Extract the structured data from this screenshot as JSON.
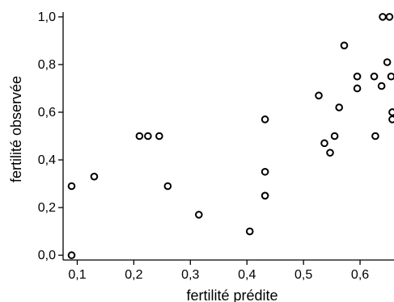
{
  "chart_data": {
    "type": "scatter",
    "title": "",
    "xlabel": "fertilité prédite",
    "ylabel": "fertilité observée",
    "xlim": [
      0.075,
      0.66
    ],
    "ylim": [
      -0.02,
      1.02
    ],
    "xticks": [
      {
        "value": 0.1,
        "label": "0,1"
      },
      {
        "value": 0.2,
        "label": "0,2"
      },
      {
        "value": 0.3,
        "label": "0,3"
      },
      {
        "value": 0.4,
        "label": "0,4"
      },
      {
        "value": 0.5,
        "label": "0,5"
      },
      {
        "value": 0.6,
        "label": "0,6"
      }
    ],
    "yticks": [
      {
        "value": 0.0,
        "label": "0,0"
      },
      {
        "value": 0.2,
        "label": "0,2"
      },
      {
        "value": 0.4,
        "label": "0,4"
      },
      {
        "value": 0.6,
        "label": "0,6"
      },
      {
        "value": 0.8,
        "label": "0,8"
      },
      {
        "value": 1.0,
        "label": "1,0"
      }
    ],
    "grid": false,
    "legend": false,
    "marker": "open-circle",
    "marker_color": "#000000",
    "points": [
      {
        "x": 0.09,
        "y": 0.0
      },
      {
        "x": 0.09,
        "y": 0.29
      },
      {
        "x": 0.13,
        "y": 0.33
      },
      {
        "x": 0.21,
        "y": 0.5
      },
      {
        "x": 0.225,
        "y": 0.5
      },
      {
        "x": 0.245,
        "y": 0.5
      },
      {
        "x": 0.26,
        "y": 0.29
      },
      {
        "x": 0.315,
        "y": 0.17
      },
      {
        "x": 0.405,
        "y": 0.1
      },
      {
        "x": 0.432,
        "y": 0.57
      },
      {
        "x": 0.432,
        "y": 0.35
      },
      {
        "x": 0.432,
        "y": 0.25
      },
      {
        "x": 0.527,
        "y": 0.67
      },
      {
        "x": 0.537,
        "y": 0.47
      },
      {
        "x": 0.547,
        "y": 0.43
      },
      {
        "x": 0.555,
        "y": 0.5
      },
      {
        "x": 0.563,
        "y": 0.62
      },
      {
        "x": 0.572,
        "y": 0.88
      },
      {
        "x": 0.595,
        "y": 0.75
      },
      {
        "x": 0.595,
        "y": 0.7
      },
      {
        "x": 0.625,
        "y": 0.75
      },
      {
        "x": 0.627,
        "y": 0.5
      },
      {
        "x": 0.638,
        "y": 0.71
      },
      {
        "x": 0.64,
        "y": 1.0
      },
      {
        "x": 0.652,
        "y": 1.0
      },
      {
        "x": 0.648,
        "y": 0.81
      },
      {
        "x": 0.655,
        "y": 0.75
      },
      {
        "x": 0.657,
        "y": 0.6
      },
      {
        "x": 0.657,
        "y": 0.57
      }
    ]
  }
}
